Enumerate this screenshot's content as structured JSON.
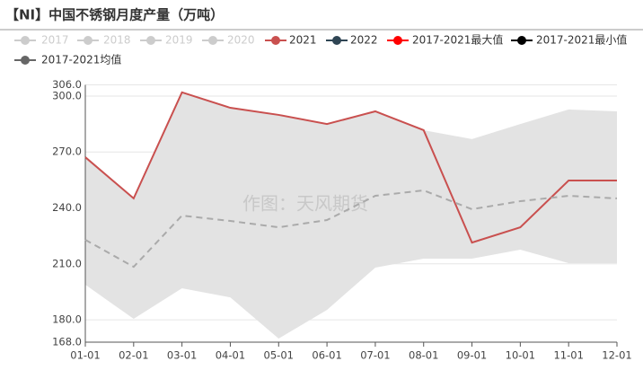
{
  "chart_data": {
    "type": "line",
    "title": "【NI】中国不锈钢月度产量（万吨）",
    "annotation": "作图：天风期货",
    "categories": [
      "01-01",
      "02-01",
      "03-01",
      "04-01",
      "05-01",
      "06-01",
      "07-01",
      "08-01",
      "09-01",
      "10-01",
      "11-01",
      "12-01"
    ],
    "ylim": [
      168,
      306
    ],
    "yticks": [
      {
        "value": 168,
        "label": "168.0"
      },
      {
        "value": 180,
        "label": "180.0"
      },
      {
        "value": 210,
        "label": "210.0"
      },
      {
        "value": 240,
        "label": "240.0"
      },
      {
        "value": 270,
        "label": "270.0"
      },
      {
        "value": 300,
        "label": "300.0"
      },
      {
        "value": 306,
        "label": "306.0"
      }
    ],
    "grid": true,
    "band_color": "#e3e3e3",
    "series": [
      {
        "name": "2017",
        "color": "#cccccc",
        "values": [
          null,
          null,
          null,
          null,
          null,
          null,
          null,
          null,
          null,
          null,
          null,
          null
        ]
      },
      {
        "name": "2018",
        "color": "#cccccc",
        "values": [
          null,
          null,
          null,
          null,
          null,
          null,
          null,
          null,
          null,
          null,
          null,
          null
        ]
      },
      {
        "name": "2019",
        "color": "#cccccc",
        "values": [
          null,
          null,
          null,
          null,
          null,
          null,
          null,
          null,
          null,
          null,
          null,
          null
        ]
      },
      {
        "name": "2020",
        "color": "#cccccc",
        "values": [
          null,
          null,
          null,
          null,
          null,
          null,
          null,
          null,
          null,
          null,
          null,
          null
        ]
      },
      {
        "name": "2021",
        "color": "#c9504f",
        "values": [
          267.2,
          245.1,
          302,
          293.7,
          289.9,
          285,
          291.8,
          281.7,
          221.4,
          229.6,
          254.7,
          254.7
        ]
      },
      {
        "name": "2022",
        "color": "#2f4554",
        "values": [
          null,
          null,
          null,
          null,
          null,
          null,
          null,
          null,
          null,
          null,
          null,
          null
        ]
      },
      {
        "name": "2017-2021最大值",
        "color": "#ff0000",
        "area": "upper",
        "values": [
          267.2,
          245.1,
          302,
          293.7,
          289.9,
          285,
          291.8,
          281.7,
          276.9,
          285,
          292.8,
          291.8
        ]
      },
      {
        "name": "2017-2021最小值",
        "color": "#000000",
        "area": "lower",
        "values": [
          198.8,
          180.5,
          196.9,
          192,
          169.9,
          185.3,
          208,
          212.8,
          212.8,
          217.6,
          210.4,
          210.4
        ]
      },
      {
        "name": "2017-2021均值",
        "color": "#666666",
        "dash": true,
        "line_color": "#aaaaaa",
        "values": [
          222.9,
          208.4,
          235.9,
          233,
          229.6,
          233.5,
          246.5,
          249.4,
          239.3,
          243.6,
          246.5,
          245.1
        ]
      }
    ]
  }
}
